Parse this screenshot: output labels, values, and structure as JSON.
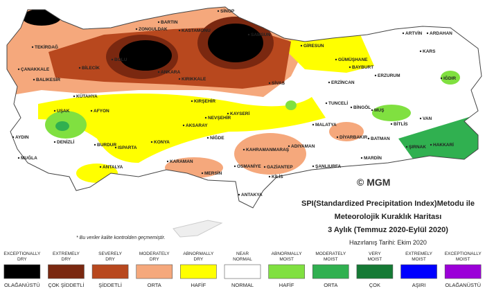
{
  "map": {
    "cities": [
      "SİNOP",
      "BARTIN",
      "ZONGULDAK",
      "KASTAMONU",
      "SAMSUN",
      "ARTVİN",
      "ARDAHAN",
      "TEKİRDAĞ",
      "KARS",
      "GİRESUN",
      "GÜMÜŞHANE",
      "BAYBURT",
      "ÇANAKKALE",
      "BALIKESİR",
      "BİLECİK",
      "BOLU",
      "ANKARA",
      "KIRIKKALE",
      "ERZURUM",
      "ERZİNCAN",
      "SİVAS",
      "IĞDIR",
      "KÜTAHYA",
      "KIRŞEHİR",
      "TUNCELİ",
      "BİNGÖL",
      "UŞAK",
      "AFYON",
      "NEVŞEHİR",
      "KAYSERİ",
      "MUŞ",
      "AKSARAY",
      "MALATYA",
      "BİTLİS",
      "VAN",
      "AYDIN",
      "DENİZLİ",
      "BURDUR",
      "ISPARTA",
      "KONYA",
      "NİĞDE",
      "KAHRAMANMARAŞ",
      "ADIYAMAN",
      "DİYARBAKIR",
      "BATMAN",
      "ŞIRNAK",
      "HAKKARİ",
      "MUĞLA",
      "KARAMAN",
      "ANTALYA",
      "OSMANİYE",
      "GAZİANTEP",
      "ŞANLIURFA",
      "MARDİN",
      "MERSİN",
      "KİLİS",
      "ANTAKYA"
    ]
  },
  "watermark": "© MGM",
  "title": {
    "lines": [
      "SPI(Standardized Precipitation Index)Metodu ile",
      "Meteorolojik Kuraklık Haritası",
      "3 Aylık (Temmuz 2020-Eylül 2020)"
    ],
    "date": "Hazırlanış Tarihi: Ekim 2020"
  },
  "footnote": "* Bu veriler kalite kontrolden geçmemiştir.",
  "legend": [
    {
      "label": [
        "EXCEPTIONALLY",
        "DRY"
      ],
      "label_tr": "OLAĞANÜSTÜ",
      "color": "#000000"
    },
    {
      "label": [
        "EXTREMELY",
        "DRY"
      ],
      "label_tr": "ÇOK ŞİDDETLİ",
      "color": "#7a2810"
    },
    {
      "label": [
        "SEVERELY",
        "DRY"
      ],
      "label_tr": "ŞİDDETLİ",
      "color": "#b8481e"
    },
    {
      "label": [
        "MODERATELY",
        "DRY"
      ],
      "label_tr": "ORTA",
      "color": "#f5a87c"
    },
    {
      "label": [
        "ABNORMALLY",
        "DRY"
      ],
      "label_tr": "HAFİF",
      "color": "#ffff00"
    },
    {
      "label": [
        "NEAR",
        "NORMAL"
      ],
      "label_tr": "NORMAL",
      "color": "#ffffff"
    },
    {
      "label": [
        "ABNORMALLY",
        "MOIST"
      ],
      "label_tr": "HAFİF",
      "color": "#80e040"
    },
    {
      "label": [
        "MODERATELY",
        "MOIST"
      ],
      "label_tr": "ORTA",
      "color": "#30b050"
    },
    {
      "label": [
        "VERY",
        "MOIST"
      ],
      "label_tr": "ÇOK",
      "color": "#157a35"
    },
    {
      "label": [
        "EXTREMELY",
        "MOIST"
      ],
      "label_tr": "AŞIRI",
      "color": "#0000ff"
    },
    {
      "label": [
        "EXCEPTIONALLY",
        "MOIST"
      ],
      "label_tr": "OLAĞANÜSTÜ",
      "color": "#9b00d8"
    }
  ]
}
